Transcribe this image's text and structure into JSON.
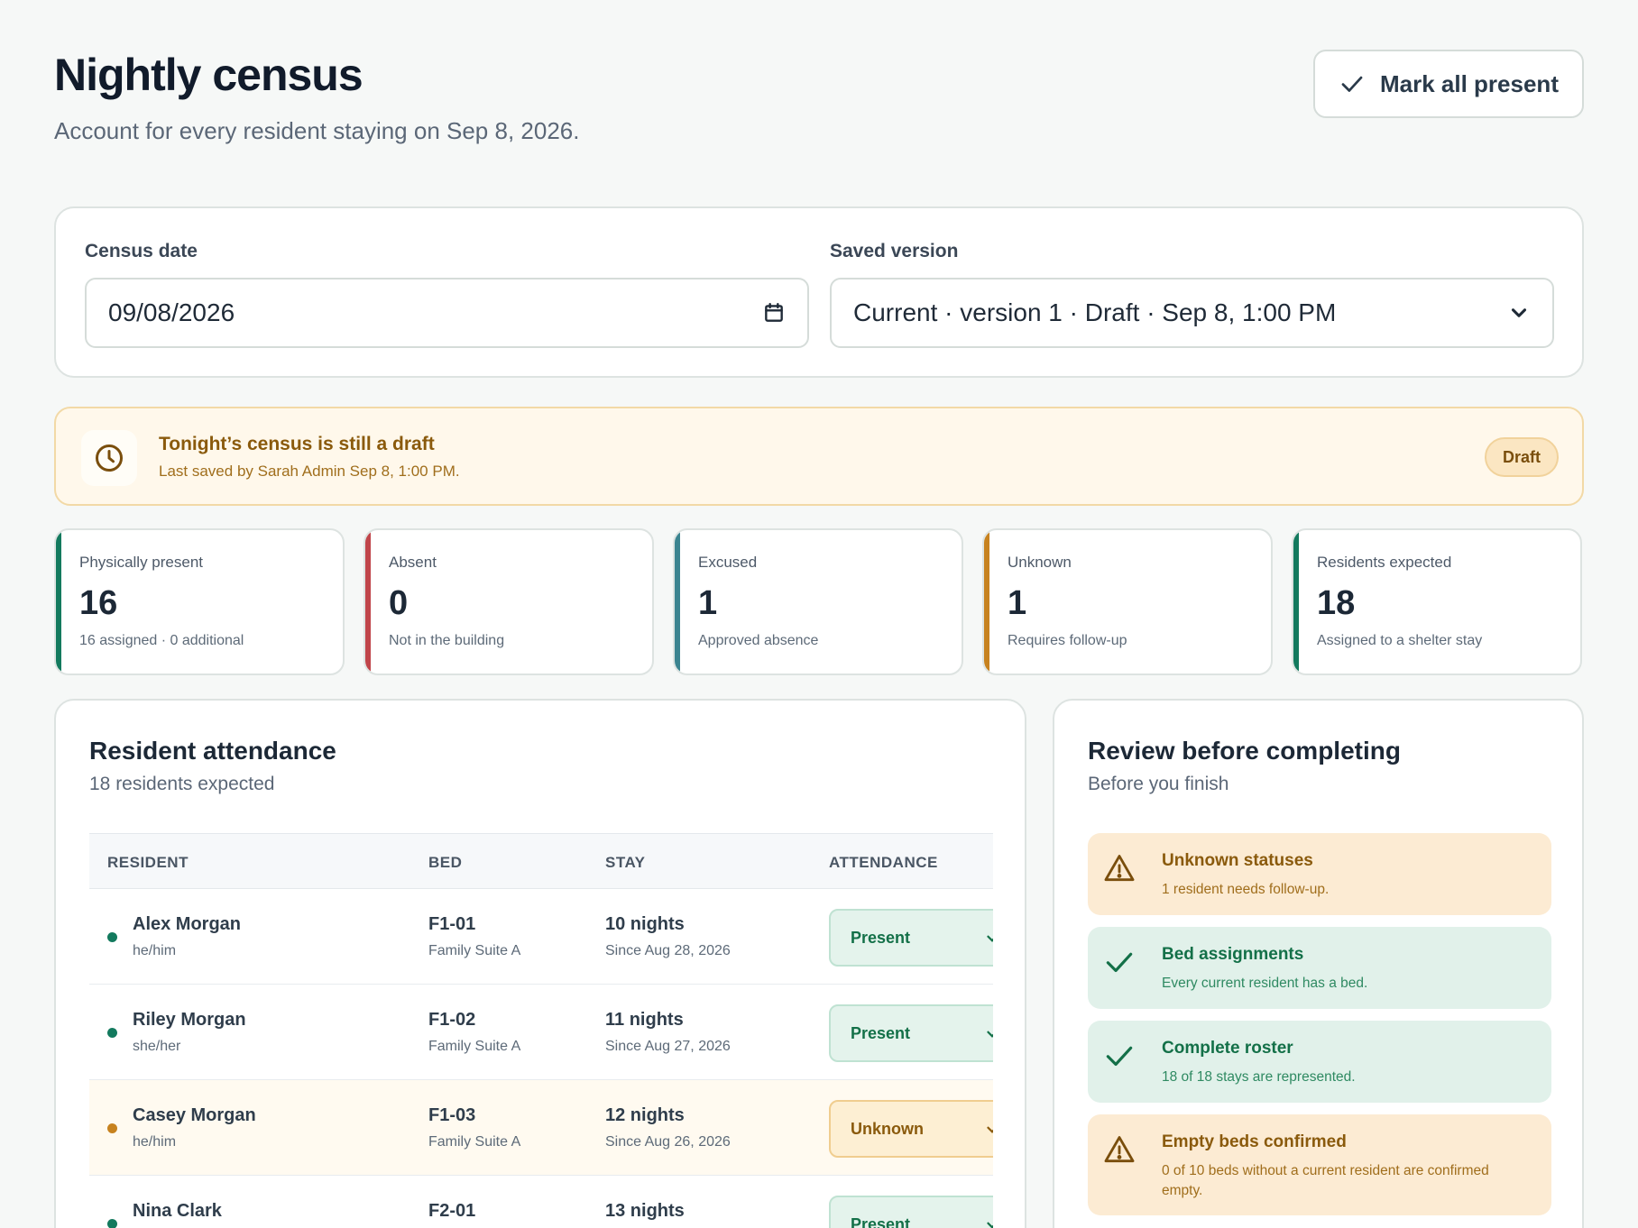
{
  "header": {
    "title": "Nightly census",
    "subtitle": "Account for every resident staying on Sep 8, 2026.",
    "mark_all_label": "Mark all present"
  },
  "filters": {
    "date_label": "Census date",
    "date_value": "09/08/2026",
    "version_label": "Saved version",
    "version_value": "Current · version 1 · Draft · Sep 8, 1:00 PM"
  },
  "banner": {
    "title": "Tonight’s census is still a draft",
    "subtitle": "Last saved by Sarah Admin Sep 8, 1:00 PM.",
    "badge": "Draft"
  },
  "stats": [
    {
      "label": "Physically present",
      "value": "16",
      "note": "16 assigned · 0 additional",
      "accent": "#137a5e"
    },
    {
      "label": "Absent",
      "value": "0",
      "note": "Not in the building",
      "accent": "#c0454a"
    },
    {
      "label": "Excused",
      "value": "1",
      "note": "Approved absence",
      "accent": "#3b8490"
    },
    {
      "label": "Unknown",
      "value": "1",
      "note": "Requires follow-up",
      "accent": "#c7821f"
    },
    {
      "label": "Residents expected",
      "value": "18",
      "note": "Assigned to a shelter stay",
      "accent": "#137a5e"
    }
  ],
  "attendance": {
    "title": "Resident attendance",
    "subtitle": "18 residents expected",
    "columns": [
      "RESIDENT",
      "BED",
      "STAY",
      "ATTENDANCE"
    ],
    "rows": [
      {
        "name": "Alex Morgan",
        "pronouns": "he/him",
        "bed": "F1-01",
        "room": "Family Suite A",
        "stay": "10 nights",
        "since": "Since Aug 28, 2026",
        "status": "Present"
      },
      {
        "name": "Riley Morgan",
        "pronouns": "she/her",
        "bed": "F1-02",
        "room": "Family Suite A",
        "stay": "11 nights",
        "since": "Since Aug 27, 2026",
        "status": "Present"
      },
      {
        "name": "Casey Morgan",
        "pronouns": "he/him",
        "bed": "F1-03",
        "room": "Family Suite A",
        "stay": "12 nights",
        "since": "Since Aug 26, 2026",
        "status": "Unknown"
      },
      {
        "name": "Nina Clark",
        "pronouns": "",
        "bed": "F2-01",
        "room": "",
        "stay": "13 nights",
        "since": "",
        "status": "Present"
      }
    ]
  },
  "review": {
    "title": "Review before completing",
    "subtitle": "Before you finish",
    "checks": [
      {
        "title": "Unknown statuses",
        "text": "1 resident needs follow-up.",
        "kind": "warn"
      },
      {
        "title": "Bed assignments",
        "text": "Every current resident has a bed.",
        "kind": "ok"
      },
      {
        "title": "Complete roster",
        "text": "18 of 18 stays are represented.",
        "kind": "ok"
      },
      {
        "title": "Empty beds confirmed",
        "text": "0 of 10 beds without a current resident are confirmed empty.",
        "kind": "warn"
      }
    ]
  },
  "icons": {
    "mark_all": "check-icon",
    "date": "calendar-icon",
    "version": "chevron-down-icon",
    "banner": "clock-icon",
    "warn": "warning-triangle-icon",
    "ok": "check-icon"
  },
  "colors": {
    "present_dot": "#137a5e",
    "unknown_dot": "#c7821f"
  }
}
